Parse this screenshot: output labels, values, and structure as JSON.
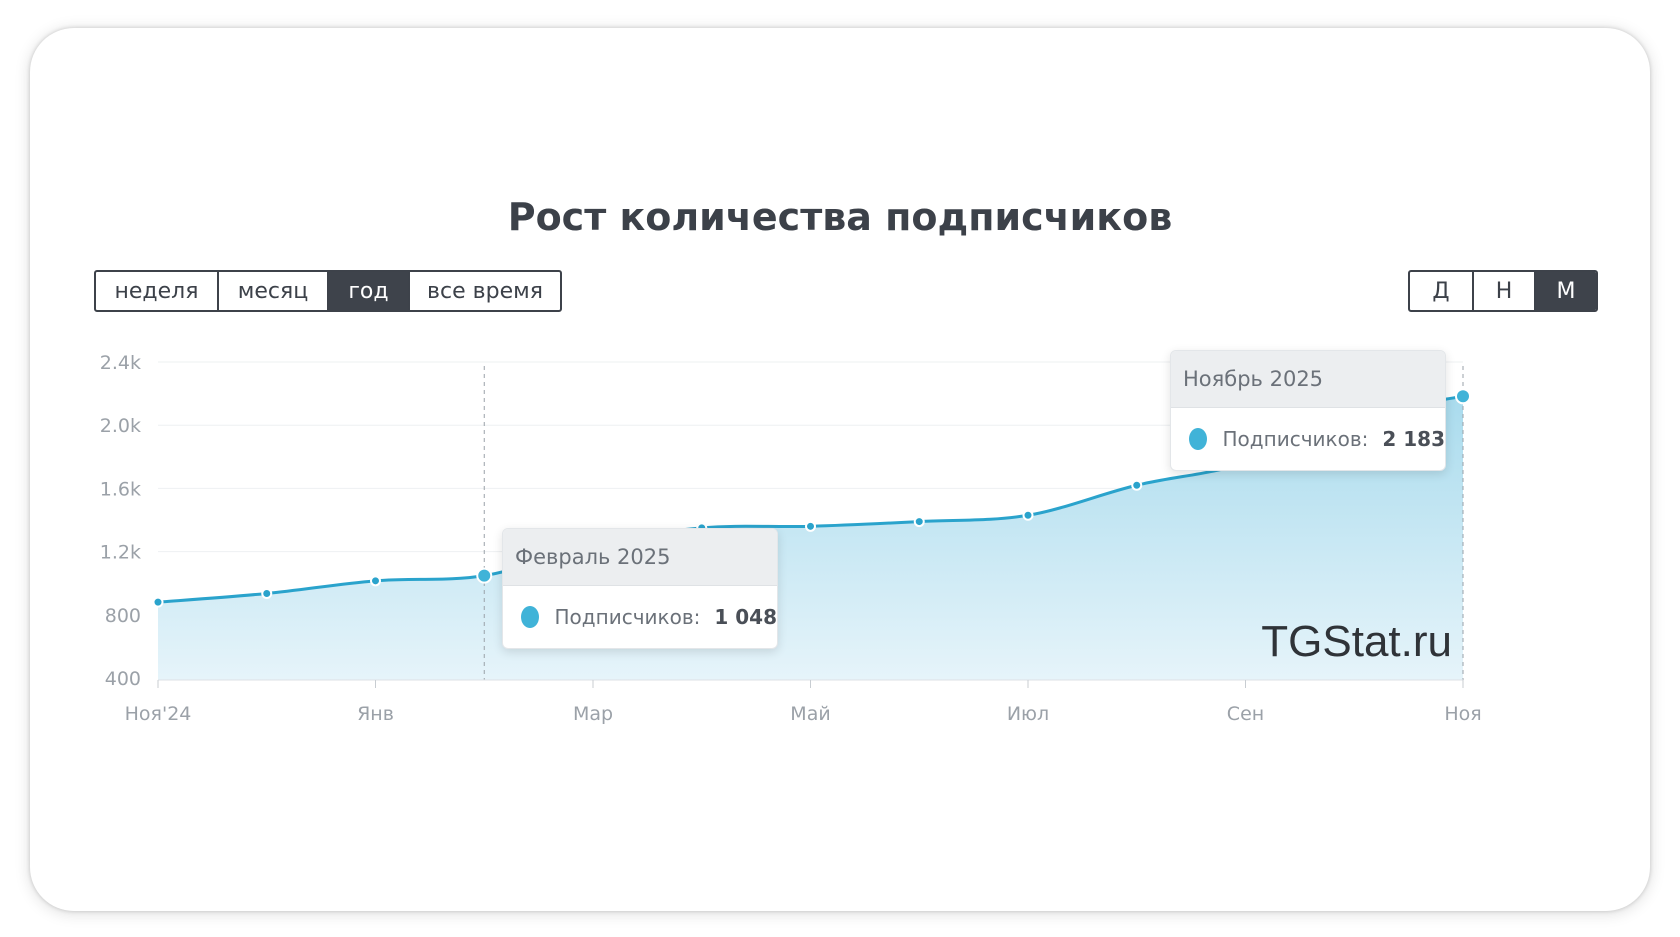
{
  "title": "Рост количества подписчиков",
  "period_buttons": [
    {
      "label": "неделя",
      "active": false
    },
    {
      "label": "месяц",
      "active": false
    },
    {
      "label": "год",
      "active": true
    },
    {
      "label": "все время",
      "active": false
    }
  ],
  "granularity_buttons": [
    {
      "label": "Д",
      "active": false
    },
    {
      "label": "Н",
      "active": false
    },
    {
      "label": "М",
      "active": true
    }
  ],
  "watermark": "TGStat.ru",
  "colors": {
    "line": "#2aa3cc",
    "area_top": "#a9dbed",
    "area_bottom": "#e6f4fa",
    "marker": "#40b3d8",
    "active_button": "#3e434b"
  },
  "tooltips": [
    {
      "header": "Февраль 2025",
      "series_label": "Подписчиков:",
      "value": "1 048"
    },
    {
      "header": "Ноябрь 2025",
      "series_label": "Подписчиков:",
      "value": "2 183"
    }
  ],
  "chart_data": {
    "type": "area",
    "title": "Рост количества подписчиков",
    "x_ticks": [
      "Ноя'24",
      "Янв",
      "Мар",
      "Май",
      "Июл",
      "Сен",
      "Ноя"
    ],
    "y_ticks": [
      "400",
      "800",
      "1.2k",
      "1.6k",
      "2.0k",
      "2.4k"
    ],
    "ylim": [
      400,
      2400
    ],
    "grid": true,
    "series": [
      {
        "name": "Подписчиков",
        "points": [
          {
            "x": "2024-11",
            "y": 880
          },
          {
            "x": "2024-12",
            "y": 935
          },
          {
            "x": "2025-01",
            "y": 1015
          },
          {
            "x": "2025-02",
            "y": 1048
          },
          {
            "x": "2025-03",
            "y": 1240
          },
          {
            "x": "2025-04",
            "y": 1350
          },
          {
            "x": "2025-05",
            "y": 1360
          },
          {
            "x": "2025-06",
            "y": 1390
          },
          {
            "x": "2025-07",
            "y": 1430
          },
          {
            "x": "2025-08",
            "y": 1620
          },
          {
            "x": "2025-09",
            "y": 1760
          },
          {
            "x": "2025-10",
            "y": 2050
          },
          {
            "x": "2025-11",
            "y": 2183
          }
        ]
      }
    ],
    "highlighted_months": [
      "2025-02",
      "2025-11"
    ]
  }
}
